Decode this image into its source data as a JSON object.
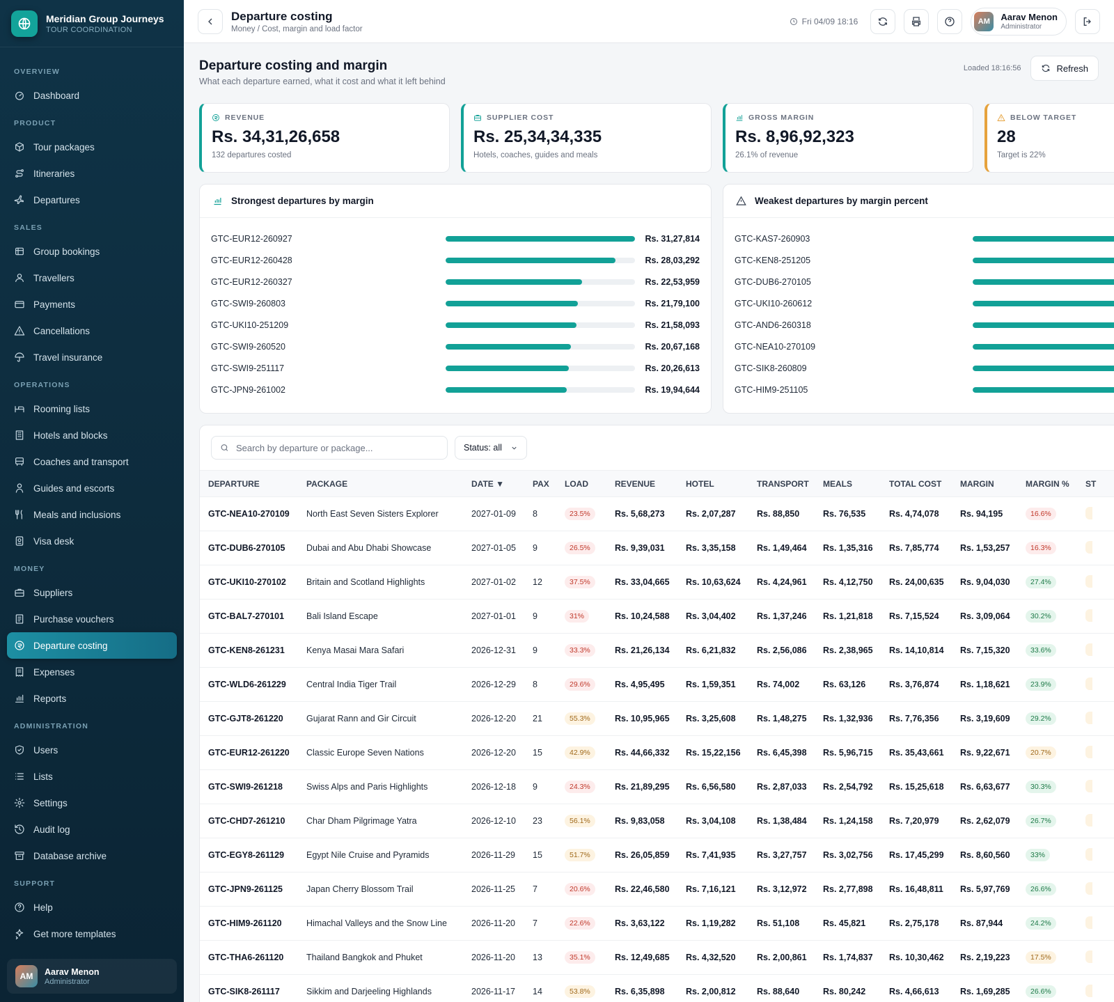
{
  "brand": {
    "name": "Meridian Group Journeys",
    "subtitle": "TOUR COORDINATION"
  },
  "nav": [
    {
      "section": "OVERVIEW",
      "items": [
        {
          "label": "Dashboard",
          "icon": "dashboard-icon"
        }
      ]
    },
    {
      "section": "PRODUCT",
      "items": [
        {
          "label": "Tour packages",
          "icon": "package-icon"
        },
        {
          "label": "Itineraries",
          "icon": "route-icon"
        },
        {
          "label": "Departures",
          "icon": "plane-icon"
        }
      ]
    },
    {
      "section": "SALES",
      "items": [
        {
          "label": "Group bookings",
          "icon": "bookings-icon"
        },
        {
          "label": "Travellers",
          "icon": "users-icon"
        },
        {
          "label": "Payments",
          "icon": "card-icon"
        },
        {
          "label": "Cancellations",
          "icon": "alert-icon"
        },
        {
          "label": "Travel insurance",
          "icon": "umbrella-icon"
        }
      ]
    },
    {
      "section": "OPERATIONS",
      "items": [
        {
          "label": "Rooming lists",
          "icon": "bed-icon"
        },
        {
          "label": "Hotels and blocks",
          "icon": "building-icon"
        },
        {
          "label": "Coaches and transport",
          "icon": "bus-icon"
        },
        {
          "label": "Guides and escorts",
          "icon": "guide-icon"
        },
        {
          "label": "Meals and inclusions",
          "icon": "utensils-icon"
        },
        {
          "label": "Visa desk",
          "icon": "passport-icon"
        }
      ]
    },
    {
      "section": "MONEY",
      "items": [
        {
          "label": "Suppliers",
          "icon": "briefcase-icon"
        },
        {
          "label": "Purchase vouchers",
          "icon": "voucher-icon"
        },
        {
          "label": "Departure costing",
          "icon": "coin-icon",
          "active": true
        },
        {
          "label": "Expenses",
          "icon": "receipt-icon"
        },
        {
          "label": "Reports",
          "icon": "chart-icon"
        }
      ]
    },
    {
      "section": "ADMINISTRATION",
      "items": [
        {
          "label": "Users",
          "icon": "shield-icon"
        },
        {
          "label": "Lists",
          "icon": "list-icon"
        },
        {
          "label": "Settings",
          "icon": "gear-icon"
        },
        {
          "label": "Audit log",
          "icon": "history-icon"
        },
        {
          "label": "Database archive",
          "icon": "archive-icon"
        }
      ]
    },
    {
      "section": "SUPPORT",
      "items": [
        {
          "label": "Help",
          "icon": "help-icon"
        },
        {
          "label": "Get more templates",
          "icon": "sparkle-icon"
        }
      ]
    }
  ],
  "user": {
    "initials": "AM",
    "name": "Aarav Menon",
    "role": "Administrator"
  },
  "topbar": {
    "title": "Departure costing",
    "breadcrumb": "Money / Cost, margin and load factor",
    "datetime": "Fri 04/09 18:16"
  },
  "page": {
    "title": "Departure costing and margin",
    "subtitle": "What each departure earned, what it cost and what it left behind",
    "loaded": "Loaded 18:16:56",
    "refresh_label": "Refresh"
  },
  "kpis": [
    {
      "label": "REVENUE",
      "value": "Rs. 34,31,26,658",
      "sub": "132 departures costed",
      "color": "#12a197",
      "icon": "coin-icon"
    },
    {
      "label": "SUPPLIER COST",
      "value": "Rs. 25,34,34,335",
      "sub": "Hotels, coaches, guides and meals",
      "color": "#12a197",
      "icon": "briefcase-icon"
    },
    {
      "label": "GROSS MARGIN",
      "value": "Rs. 8,96,92,323",
      "sub": "26.1% of revenue",
      "color": "#12a197",
      "icon": "chart-icon"
    },
    {
      "label": "BELOW TARGET",
      "value": "28",
      "sub": "Target is 22%",
      "color": "#e6a23c",
      "icon": "warning-icon"
    }
  ],
  "strongest": {
    "title": "Strongest departures by margin",
    "rows": [
      {
        "name": "GTC-EUR12-260927",
        "amount": "Rs. 31,27,814",
        "value": 3127814
      },
      {
        "name": "GTC-EUR12-260428",
        "amount": "Rs. 28,03,292",
        "value": 2803292
      },
      {
        "name": "GTC-EUR12-260327",
        "amount": "Rs. 22,53,959",
        "value": 2253959
      },
      {
        "name": "GTC-SWI9-260803",
        "amount": "Rs. 21,79,100",
        "value": 2179100
      },
      {
        "name": "GTC-UKI10-251209",
        "amount": "Rs. 21,58,093",
        "value": 2158093
      },
      {
        "name": "GTC-SWI9-260520",
        "amount": "Rs. 20,67,168",
        "value": 2067168
      },
      {
        "name": "GTC-SWI9-251117",
        "amount": "Rs. 20,26,613",
        "value": 2026613
      },
      {
        "name": "GTC-JPN9-261002",
        "amount": "Rs. 19,94,644",
        "value": 1994644
      }
    ]
  },
  "weakest": {
    "title": "Weakest departures by margin percent",
    "rows": [
      {
        "name": "GTC-KAS7-260903"
      },
      {
        "name": "GTC-KEN8-251205"
      },
      {
        "name": "GTC-DUB6-270105"
      },
      {
        "name": "GTC-UKI10-260612"
      },
      {
        "name": "GTC-AND6-260318"
      },
      {
        "name": "GTC-NEA10-270109"
      },
      {
        "name": "GTC-SIK8-260809"
      },
      {
        "name": "GTC-HIM9-251105"
      }
    ]
  },
  "filters": {
    "search_placeholder": "Search by departure or package...",
    "status": "Status: all"
  },
  "table": {
    "headers": [
      "DEPARTURE",
      "PACKAGE",
      "DATE ▼",
      "PAX",
      "LOAD",
      "REVENUE",
      "HOTEL",
      "TRANSPORT",
      "MEALS",
      "TOTAL COST",
      "MARGIN",
      "MARGIN %",
      "ST"
    ],
    "rows": [
      [
        "GTC-NEA10-270109",
        "North East Seven Sisters Explorer",
        "2027-01-09",
        "8",
        "23.5%",
        "Rs. 5,68,273",
        "Rs. 2,07,287",
        "Rs. 88,850",
        "Rs. 76,535",
        "Rs. 4,74,078",
        "Rs. 94,195",
        "16.6%"
      ],
      [
        "GTC-DUB6-270105",
        "Dubai and Abu Dhabi Showcase",
        "2027-01-05",
        "9",
        "26.5%",
        "Rs. 9,39,031",
        "Rs. 3,35,158",
        "Rs. 1,49,464",
        "Rs. 1,35,316",
        "Rs. 7,85,774",
        "Rs. 1,53,257",
        "16.3%"
      ],
      [
        "GTC-UKI10-270102",
        "Britain and Scotland Highlights",
        "2027-01-02",
        "12",
        "37.5%",
        "Rs. 33,04,665",
        "Rs. 10,63,624",
        "Rs. 4,24,961",
        "Rs. 4,12,750",
        "Rs. 24,00,635",
        "Rs. 9,04,030",
        "27.4%"
      ],
      [
        "GTC-BAL7-270101",
        "Bali Island Escape",
        "2027-01-01",
        "9",
        "31%",
        "Rs. 10,24,588",
        "Rs. 3,04,402",
        "Rs. 1,37,246",
        "Rs. 1,21,818",
        "Rs. 7,15,524",
        "Rs. 3,09,064",
        "30.2%"
      ],
      [
        "GTC-KEN8-261231",
        "Kenya Masai Mara Safari",
        "2026-12-31",
        "9",
        "33.3%",
        "Rs. 21,26,134",
        "Rs. 6,21,832",
        "Rs. 2,56,086",
        "Rs. 2,38,965",
        "Rs. 14,10,814",
        "Rs. 7,15,320",
        "33.6%"
      ],
      [
        "GTC-WLD6-261229",
        "Central India Tiger Trail",
        "2026-12-29",
        "8",
        "29.6%",
        "Rs. 4,95,495",
        "Rs. 1,59,351",
        "Rs. 74,002",
        "Rs. 63,126",
        "Rs. 3,76,874",
        "Rs. 1,18,621",
        "23.9%"
      ],
      [
        "GTC-GJT8-261220",
        "Gujarat Rann and Gir Circuit",
        "2026-12-20",
        "21",
        "55.3%",
        "Rs. 10,95,965",
        "Rs. 3,25,608",
        "Rs. 1,48,275",
        "Rs. 1,32,936",
        "Rs. 7,76,356",
        "Rs. 3,19,609",
        "29.2%"
      ],
      [
        "GTC-EUR12-261220",
        "Classic Europe Seven Nations",
        "2026-12-20",
        "15",
        "42.9%",
        "Rs. 44,66,332",
        "Rs. 15,22,156",
        "Rs. 6,45,398",
        "Rs. 5,96,715",
        "Rs. 35,43,661",
        "Rs. 9,22,671",
        "20.7%"
      ],
      [
        "GTC-SWI9-261218",
        "Swiss Alps and Paris Highlights",
        "2026-12-18",
        "9",
        "24.3%",
        "Rs. 21,89,295",
        "Rs. 6,56,580",
        "Rs. 2,87,033",
        "Rs. 2,54,792",
        "Rs. 15,25,618",
        "Rs. 6,63,677",
        "30.3%"
      ],
      [
        "GTC-CHD7-261210",
        "Char Dham Pilgrimage Yatra",
        "2026-12-10",
        "23",
        "56.1%",
        "Rs. 9,83,058",
        "Rs. 3,04,108",
        "Rs. 1,38,484",
        "Rs. 1,24,158",
        "Rs. 7,20,979",
        "Rs. 2,62,079",
        "26.7%"
      ],
      [
        "GTC-EGY8-261129",
        "Egypt Nile Cruise and Pyramids",
        "2026-11-29",
        "15",
        "51.7%",
        "Rs. 26,05,859",
        "Rs. 7,41,935",
        "Rs. 3,27,757",
        "Rs. 3,02,756",
        "Rs. 17,45,299",
        "Rs. 8,60,560",
        "33%"
      ],
      [
        "GTC-JPN9-261125",
        "Japan Cherry Blossom Trail",
        "2026-11-25",
        "7",
        "20.6%",
        "Rs. 22,46,580",
        "Rs. 7,16,121",
        "Rs. 3,12,972",
        "Rs. 2,77,898",
        "Rs. 16,48,811",
        "Rs. 5,97,769",
        "26.6%"
      ],
      [
        "GTC-HIM9-261120",
        "Himachal Valleys and the Snow Line",
        "2026-11-20",
        "7",
        "22.6%",
        "Rs. 3,63,122",
        "Rs. 1,19,282",
        "Rs. 51,108",
        "Rs. 45,821",
        "Rs. 2,75,178",
        "Rs. 87,944",
        "24.2%"
      ],
      [
        "GTC-THA6-261120",
        "Thailand Bangkok and Phuket",
        "2026-11-20",
        "13",
        "35.1%",
        "Rs. 12,49,685",
        "Rs. 4,32,520",
        "Rs. 2,00,861",
        "Rs. 1,74,837",
        "Rs. 10,30,462",
        "Rs. 2,19,223",
        "17.5%"
      ],
      [
        "GTC-SIK8-261117",
        "Sikkim and Darjeeling Highlands",
        "2026-11-17",
        "14",
        "53.8%",
        "Rs. 6,35,898",
        "Rs. 2,00,812",
        "Rs. 88,640",
        "Rs. 80,242",
        "Rs. 4,66,613",
        "Rs. 1,69,285",
        "26.6%"
      ]
    ]
  },
  "colors": {
    "accent": "#12a197",
    "warning": "#e6a23c",
    "sidebar": "#0f3347"
  }
}
